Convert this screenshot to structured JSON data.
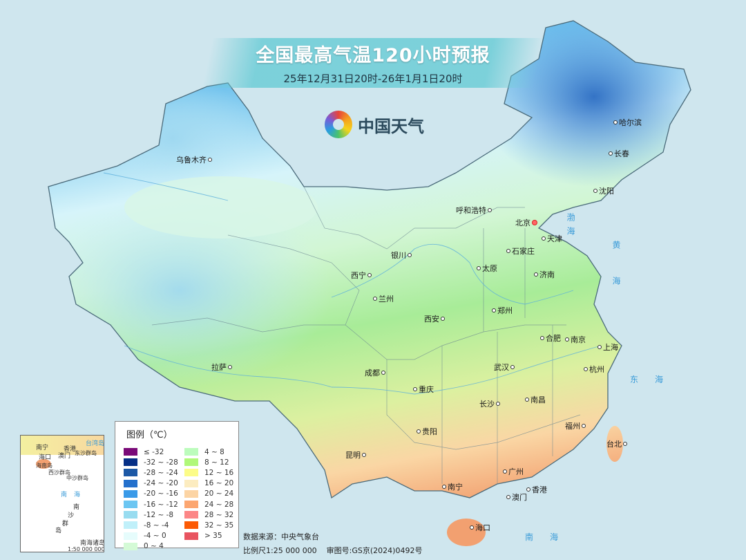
{
  "header": {
    "title": "全国最高气温120小时预报",
    "subtitle": "25年12月31日20时-26年1月1日20时",
    "logo_text": "中国天气"
  },
  "colors": {
    "background": "#cfe6ee",
    "title_banner": "#6ecdd7",
    "capital_marker": "#dd2222"
  },
  "cities": [
    {
      "name": "乌鲁木齐"
    },
    {
      "name": "哈尔滨"
    },
    {
      "name": "长春"
    },
    {
      "name": "沈阳"
    },
    {
      "name": "呼和浩特"
    },
    {
      "name": "北京",
      "capital": true
    },
    {
      "name": "天津"
    },
    {
      "name": "石家庄"
    },
    {
      "name": "银川"
    },
    {
      "name": "太原"
    },
    {
      "name": "济南"
    },
    {
      "name": "西宁"
    },
    {
      "name": "兰州"
    },
    {
      "name": "郑州"
    },
    {
      "name": "西安"
    },
    {
      "name": "合肥"
    },
    {
      "name": "南京"
    },
    {
      "name": "上海"
    },
    {
      "name": "拉萨"
    },
    {
      "name": "成都"
    },
    {
      "name": "武汉"
    },
    {
      "name": "杭州"
    },
    {
      "name": "重庆"
    },
    {
      "name": "长沙"
    },
    {
      "name": "南昌"
    },
    {
      "name": "福州"
    },
    {
      "name": "台北"
    },
    {
      "name": "贵阳"
    },
    {
      "name": "昆明"
    },
    {
      "name": "广州"
    },
    {
      "name": "南宁"
    },
    {
      "name": "香港"
    },
    {
      "name": "澳门"
    },
    {
      "name": "海口"
    }
  ],
  "seas": {
    "bohai": "渤海",
    "huanghai": "黄海",
    "donghai": "东海",
    "nanhai": "南海"
  },
  "legend": {
    "title": "图例（℃）",
    "items": [
      {
        "label": "≤ -32",
        "color": "#7a0a78"
      },
      {
        "label": "-32 ~ -28",
        "color": "#062f86"
      },
      {
        "label": "-28 ~ -24",
        "color": "#1c58a6"
      },
      {
        "label": "-24 ~ -20",
        "color": "#2470cc"
      },
      {
        "label": "-20 ~ -16",
        "color": "#3a9ae8"
      },
      {
        "label": "-16 ~ -12",
        "color": "#6cc6f2"
      },
      {
        "label": "-12 ~ -8",
        "color": "#98dcf0"
      },
      {
        "label": "-8 ~ -4",
        "color": "#c0f0fa"
      },
      {
        "label": "-4 ~ 0",
        "color": "#e6fcfc"
      },
      {
        "label": "0 ~ 4",
        "color": "#d4fad6"
      },
      {
        "label": "4 ~ 8",
        "color": "#bcfcbc"
      },
      {
        "label": "8 ~ 12",
        "color": "#b0f878"
      },
      {
        "label": "12 ~ 16",
        "color": "#fcfc88"
      },
      {
        "label": "16 ~ 20",
        "color": "#fcecc0"
      },
      {
        "label": "20 ~ 24",
        "color": "#fcd4a4"
      },
      {
        "label": "24 ~ 28",
        "color": "#fca670"
      },
      {
        "label": "28 ~ 32",
        "color": "#fc8686"
      },
      {
        "label": "32 ~ 35",
        "color": "#fc5a04"
      },
      {
        "label": "> 35",
        "color": "#e85460"
      }
    ]
  },
  "footer": {
    "source": "数据来源：中央气象台",
    "scale_and_approval": "比例尺1:25 000 000    审图号:GS京(2024)0492号"
  },
  "inset": {
    "labels": [
      "南宁",
      "香港",
      "澳门",
      "海口",
      "台湾岛",
      "东沙群岛",
      "海南岛",
      "西沙群岛",
      "中沙群岛",
      "南海",
      "南",
      "沙",
      "群",
      "岛"
    ],
    "caption": "南海诸岛",
    "scale": "1:50 000 000"
  }
}
